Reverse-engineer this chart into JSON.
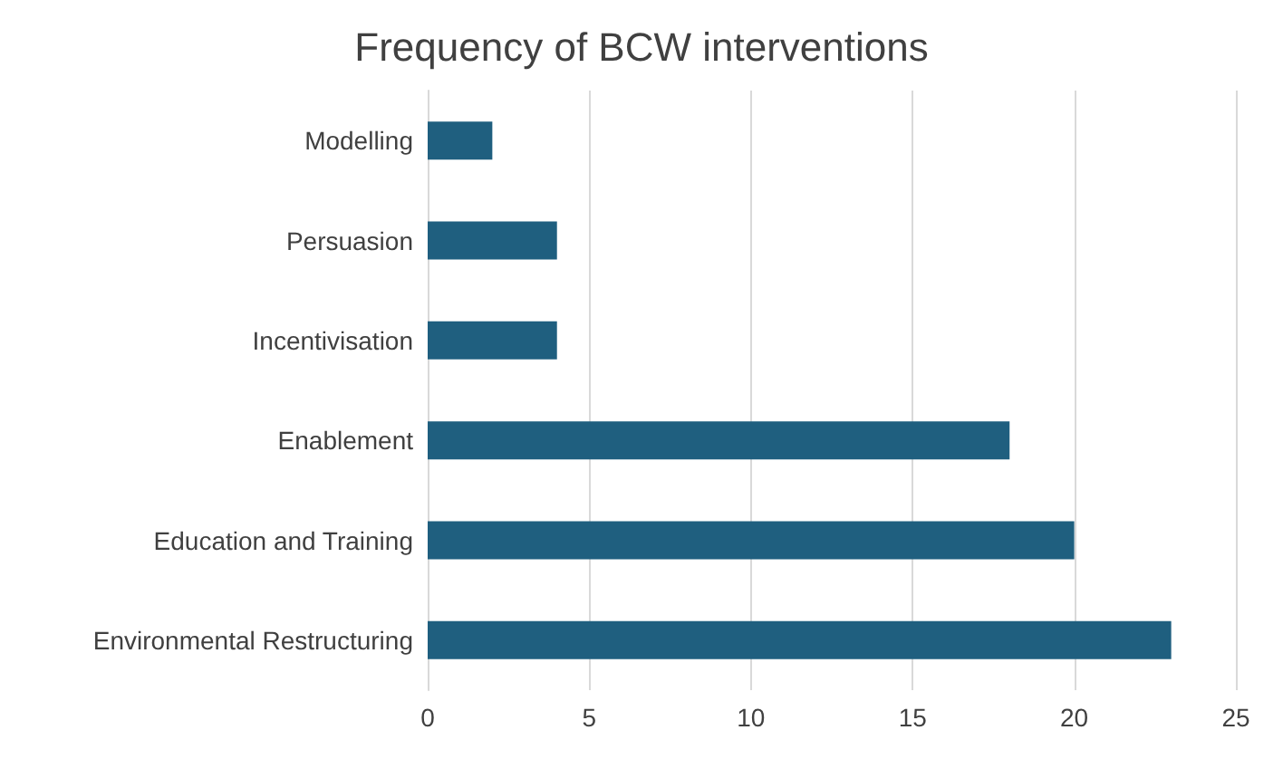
{
  "chart_data": {
    "type": "bar",
    "title": "Frequency of BCW interventions",
    "orientation": "horizontal",
    "categories": [
      "Modelling",
      "Persuasion",
      "Incentivisation",
      "Enablement",
      "Education and Training",
      "Environmental Restructuring"
    ],
    "values": [
      2,
      4,
      4,
      18,
      20,
      23
    ],
    "color": "#1f5f7f",
    "xlim": [
      0,
      25
    ],
    "xticks": [
      0,
      5,
      10,
      15,
      20,
      25
    ],
    "grid": "x"
  }
}
